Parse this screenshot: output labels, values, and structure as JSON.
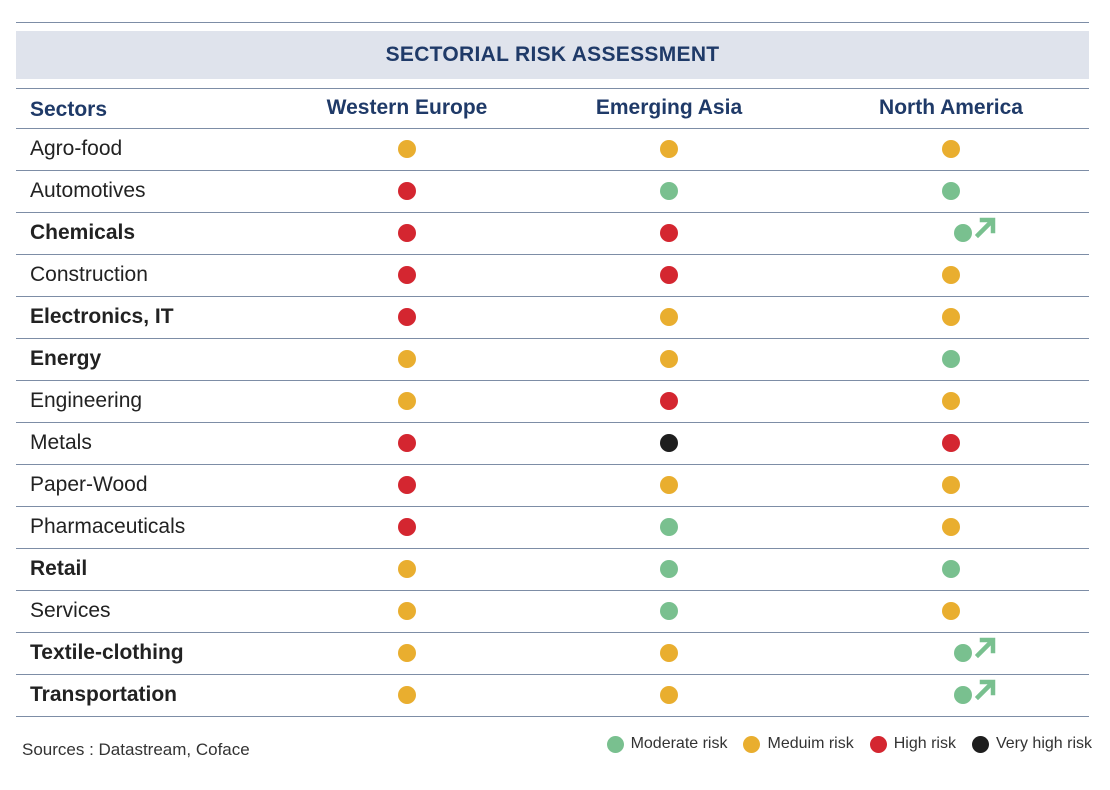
{
  "chart_data": {
    "type": "table",
    "title": "SECTORIAL RISK ASSESSMENT",
    "header": {
      "sectors": "Sectors",
      "columns": [
        "Western Europe",
        "Emerging Asia",
        "North America"
      ]
    },
    "rows": [
      {
        "sector": "Agro-food",
        "bold": false,
        "values": [
          "medium",
          "medium",
          "medium"
        ],
        "na_arrow": false
      },
      {
        "sector": "Automotives",
        "bold": false,
        "values": [
          "high",
          "moderate",
          "moderate"
        ],
        "na_arrow": false
      },
      {
        "sector": "Chemicals",
        "bold": true,
        "values": [
          "high",
          "high",
          "moderate"
        ],
        "na_arrow": true
      },
      {
        "sector": "Construction",
        "bold": false,
        "values": [
          "high",
          "high",
          "medium"
        ],
        "na_arrow": false
      },
      {
        "sector": "Electronics, IT",
        "bold": true,
        "values": [
          "high",
          "medium",
          "medium"
        ],
        "na_arrow": false
      },
      {
        "sector": "Energy",
        "bold": true,
        "values": [
          "medium",
          "medium",
          "moderate"
        ],
        "na_arrow": false
      },
      {
        "sector": "Engineering",
        "bold": false,
        "values": [
          "medium",
          "high",
          "medium"
        ],
        "na_arrow": false
      },
      {
        "sector": "Metals",
        "bold": false,
        "values": [
          "high",
          "veryhigh",
          "high"
        ],
        "na_arrow": false
      },
      {
        "sector": "Paper-Wood",
        "bold": false,
        "values": [
          "high",
          "medium",
          "medium"
        ],
        "na_arrow": false
      },
      {
        "sector": "Pharmaceuticals",
        "bold": false,
        "values": [
          "high",
          "moderate",
          "medium"
        ],
        "na_arrow": false
      },
      {
        "sector": "Retail",
        "bold": true,
        "values": [
          "medium",
          "moderate",
          "moderate"
        ],
        "na_arrow": false
      },
      {
        "sector": "Services",
        "bold": false,
        "values": [
          "medium",
          "moderate",
          "medium"
        ],
        "na_arrow": false
      },
      {
        "sector": "Textile-clothing",
        "bold": true,
        "values": [
          "medium",
          "medium",
          "moderate"
        ],
        "na_arrow": true
      },
      {
        "sector": "Transportation",
        "bold": true,
        "values": [
          "medium",
          "medium",
          "moderate"
        ],
        "na_arrow": true
      }
    ],
    "legend": [
      {
        "key": "moderate",
        "label": "Moderate risk",
        "color": "#79c08f"
      },
      {
        "key": "medium",
        "label": "Meduim risk",
        "color": "#e9ae2f"
      },
      {
        "key": "high",
        "label": "High risk",
        "color": "#d42630"
      },
      {
        "key": "veryhigh",
        "label": "Very high risk",
        "color": "#1e1e1e"
      }
    ],
    "arrow_color": "#79c08f"
  },
  "footer": {
    "sources": "Sources : Datastream, Coface"
  }
}
